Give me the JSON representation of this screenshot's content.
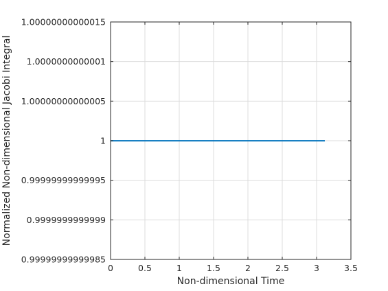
{
  "chart_data": {
    "type": "line",
    "xlabel": "Non-dimensional Time",
    "ylabel": "Normalized Non-dimensional Jacobi Integral",
    "xlim": [
      0,
      3.5
    ],
    "ylim": [
      0.99999999999985,
      1.00000000000015
    ],
    "grid": true,
    "x_ticks": [
      0,
      0.5,
      1,
      1.5,
      2,
      2.5,
      3,
      3.5
    ],
    "x_tick_labels": [
      "0",
      "0.5",
      "1",
      "1.5",
      "2",
      "2.5",
      "3",
      "3.5"
    ],
    "y_ticks": [
      0.99999999999985,
      0.9999999999999,
      0.99999999999995,
      1,
      1.00000000000005,
      1.0000000000001,
      1.00000000000015
    ],
    "y_tick_labels": [
      "0.99999999999985",
      "0.9999999999999",
      "0.99999999999995",
      "1",
      "1.00000000000005",
      "1.0000000000001",
      "1.00000000000015"
    ],
    "series": [
      {
        "color": "#0072bd",
        "x": [
          0,
          3.12
        ],
        "y": [
          1,
          1
        ]
      }
    ]
  }
}
